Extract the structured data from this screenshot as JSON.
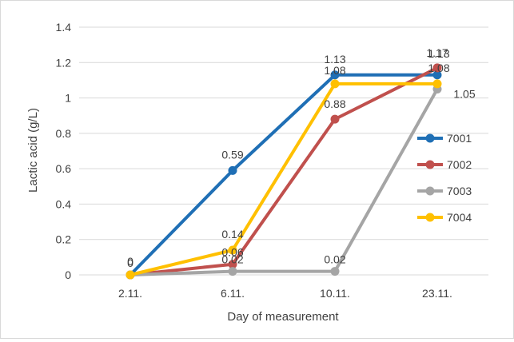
{
  "chart_data": {
    "type": "line",
    "title": "",
    "xlabel": "Day of measurement",
    "ylabel": "Lactic acid (g/L)",
    "categories": [
      "2.11.",
      "6.11.",
      "10.11.",
      "23.11."
    ],
    "ylim": [
      0,
      1.4
    ],
    "yticks": [
      "0",
      "0.2",
      "0.4",
      "0.6",
      "0.8",
      "1",
      "1.2",
      "1.4"
    ],
    "grid": "horizontal",
    "legend_position": "right",
    "series": [
      {
        "name": "7001",
        "color": "#1f6fb5",
        "values": [
          0,
          0.59,
          1.13,
          1.13
        ],
        "labels": [
          "0",
          "0.59",
          "1.13",
          "1.13"
        ]
      },
      {
        "name": "7002",
        "color": "#c0504d",
        "values": [
          0,
          0.06,
          0.88,
          1.17
        ],
        "labels": [
          "",
          "0.06",
          "0.88",
          "1.17"
        ]
      },
      {
        "name": "7003",
        "color": "#a5a5a5",
        "values": [
          0,
          0.02,
          0.02,
          1.05
        ],
        "labels": [
          "",
          "0.02",
          "0.02",
          "1.05"
        ]
      },
      {
        "name": "7004",
        "color": "#ffc000",
        "values": [
          0,
          0.14,
          1.08,
          1.08
        ],
        "labels": [
          "0",
          "0.14",
          "1.08",
          "1.08"
        ]
      }
    ]
  }
}
